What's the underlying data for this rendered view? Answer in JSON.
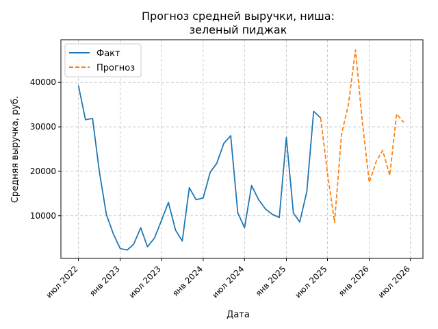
{
  "chart_data": {
    "type": "line",
    "title_lines": [
      "Прогноз средней выручки, ниша:",
      "зеленый пиджак"
    ],
    "xlabel": "Дата",
    "ylabel": "Средняя выручка, руб.",
    "grid": true,
    "legend_position": "top-left",
    "x_ticks": [
      {
        "date": "2022-07-01",
        "label": "июл 2022"
      },
      {
        "date": "2023-01-01",
        "label": "янв 2023"
      },
      {
        "date": "2023-07-01",
        "label": "июл 2023"
      },
      {
        "date": "2024-01-01",
        "label": "янв 2024"
      },
      {
        "date": "2024-07-01",
        "label": "июл 2024"
      },
      {
        "date": "2025-01-01",
        "label": "янв 2025"
      },
      {
        "date": "2025-07-01",
        "label": "июл 2025"
      },
      {
        "date": "2026-01-01",
        "label": "янв 2026"
      },
      {
        "date": "2026-07-01",
        "label": "июл 2026"
      }
    ],
    "y_ticks": [
      10000,
      20000,
      30000,
      40000
    ],
    "xlim": [
      "2022-04-15",
      "2026-08-25"
    ],
    "ylim": [
      400,
      49600
    ],
    "series": [
      {
        "name": "Факт",
        "color": "#1f77b4",
        "style": "solid",
        "points": [
          [
            "2022-07-01",
            39300
          ],
          [
            "2022-08-01",
            31600
          ],
          [
            "2022-09-01",
            31900
          ],
          [
            "2022-10-01",
            20000
          ],
          [
            "2022-11-01",
            10300
          ],
          [
            "2022-12-01",
            6000
          ],
          [
            "2023-01-01",
            2600
          ],
          [
            "2023-02-01",
            2300
          ],
          [
            "2023-03-01",
            3600
          ],
          [
            "2023-04-01",
            7300
          ],
          [
            "2023-05-01",
            3000
          ],
          [
            "2023-06-01",
            5000
          ],
          [
            "2023-07-01",
            8900
          ],
          [
            "2023-08-01",
            13000
          ],
          [
            "2023-09-01",
            6800
          ],
          [
            "2023-10-01",
            4300
          ],
          [
            "2023-11-01",
            16300
          ],
          [
            "2023-12-01",
            13600
          ],
          [
            "2024-01-01",
            14000
          ],
          [
            "2024-02-01",
            19800
          ],
          [
            "2024-03-01",
            21800
          ],
          [
            "2024-04-01",
            26300
          ],
          [
            "2024-05-01",
            28000
          ],
          [
            "2024-06-01",
            10700
          ],
          [
            "2024-07-01",
            7300
          ],
          [
            "2024-08-01",
            16800
          ],
          [
            "2024-09-01",
            13600
          ],
          [
            "2024-10-01",
            11500
          ],
          [
            "2024-11-01",
            10300
          ],
          [
            "2024-12-01",
            9600
          ],
          [
            "2025-01-01",
            27600
          ],
          [
            "2025-02-01",
            10600
          ],
          [
            "2025-03-01",
            8600
          ],
          [
            "2025-04-01",
            15400
          ],
          [
            "2025-05-01",
            33500
          ],
          [
            "2025-06-01",
            32000
          ]
        ]
      },
      {
        "name": "Прогноз",
        "color": "#ff7f0e",
        "style": "dashed",
        "points": [
          [
            "2025-06-01",
            32000
          ],
          [
            "2025-07-01",
            19600
          ],
          [
            "2025-08-01",
            8500
          ],
          [
            "2025-09-01",
            28400
          ],
          [
            "2025-10-01",
            35000
          ],
          [
            "2025-11-01",
            47300
          ],
          [
            "2025-12-01",
            31300
          ],
          [
            "2026-01-01",
            17500
          ],
          [
            "2026-02-01",
            22300
          ],
          [
            "2026-03-01",
            24700
          ],
          [
            "2026-04-01",
            19100
          ],
          [
            "2026-05-01",
            32900
          ],
          [
            "2026-06-01",
            31000
          ]
        ]
      }
    ]
  }
}
